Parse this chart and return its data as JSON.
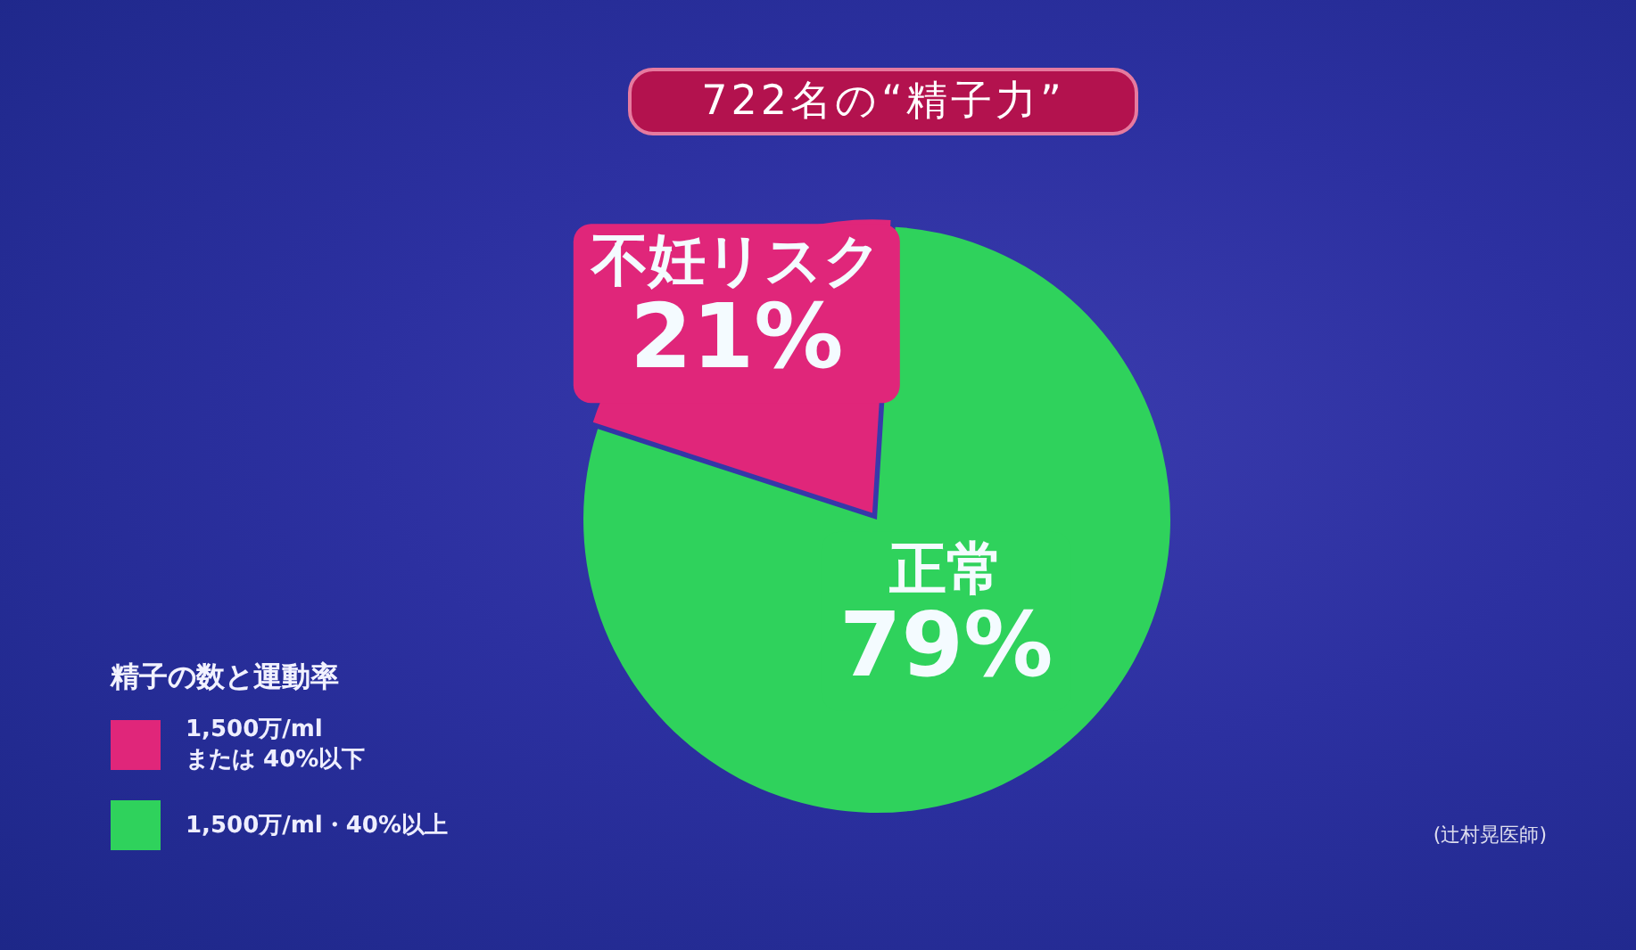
{
  "chart_data": {
    "type": "pie",
    "title": "722名の“精子力”",
    "categories": [
      "1,500万/ml\nまたは 40%以下",
      "1,500万/ml・40%以上"
    ],
    "values": [
      21,
      79
    ],
    "colors": [
      "#e0267a",
      "#2fd25c"
    ],
    "value_labels": [
      "不妊リスク\n21%",
      "正常\n79%"
    ],
    "legend_title": "精子の数と運動率",
    "legend": "bottom left",
    "annotations": [
      "(辻村晃医師)"
    ]
  }
}
